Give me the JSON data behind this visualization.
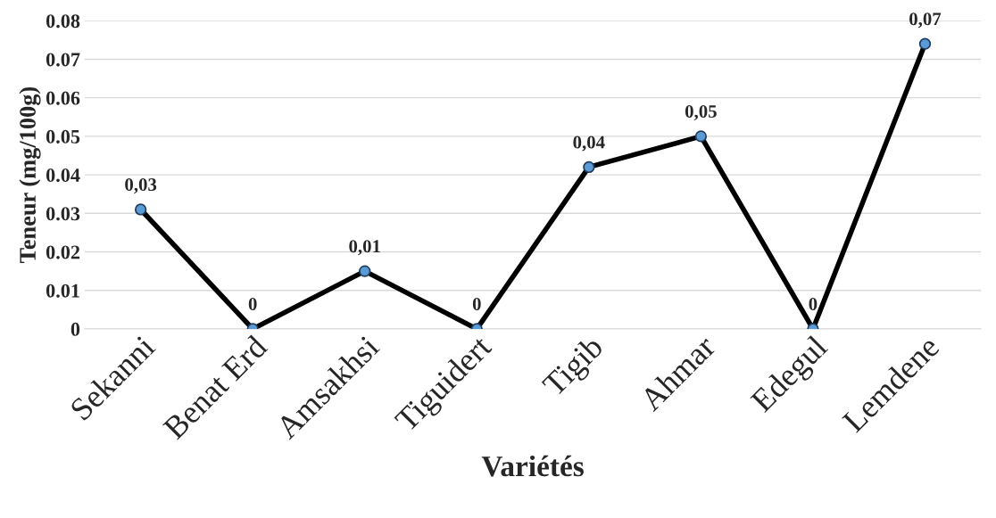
{
  "chart_data": {
    "type": "line",
    "xlabel": "Variétés",
    "ylabel": "Teneur (mg/100g)",
    "categories": [
      "Sekanni",
      "Benat Erd",
      "Amsakhsi",
      "Tiguidert",
      "Tigib",
      "Ahmar",
      "Edegul",
      "Lemdene"
    ],
    "series": [
      {
        "color": "#000000",
        "colors": [
          "#5b9bd5",
          "#5b9bd5",
          "#5b9bd5",
          "#5b9bd5",
          "#5b9bd5",
          "#5b9bd5",
          "#5b9bd5",
          "#5b9bd5"
        ],
        "values": [
          0.031,
          0,
          0.015,
          0,
          0.042,
          0.05,
          0,
          0.074
        ],
        "value_labels": [
          "0,03",
          "0",
          "0,01",
          "0",
          "0,04",
          "0,05",
          "0",
          "0,07"
        ]
      }
    ],
    "ylim": [
      0,
      0.08
    ],
    "yticks": [
      0,
      0.01,
      0.02,
      0.03,
      0.04,
      0.05,
      0.06,
      0.07,
      0.08
    ],
    "grid": "y",
    "marker": "circle",
    "line_style": "solid"
  }
}
